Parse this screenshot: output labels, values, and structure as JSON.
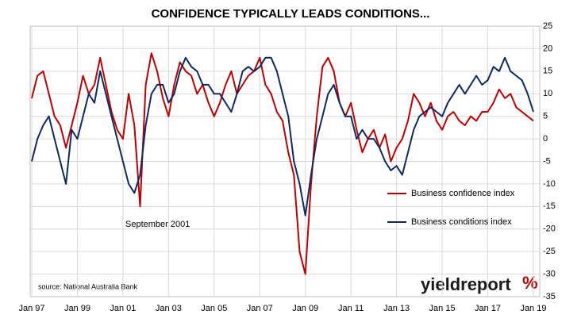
{
  "chart_data": {
    "type": "line",
    "title": "CONFIDENCE TYPICALLY LEADS CONDITIONS...",
    "annotation": "September 2001",
    "source": "source: National Australia Bank",
    "logo": "yieldreport",
    "logo_mark": "%",
    "legend": "right",
    "grid": true,
    "xlim": [
      1996.93,
      2019.28
    ],
    "xticks": [
      {
        "value": 1997,
        "label": "Jan 97"
      },
      {
        "value": 1999,
        "label": "Jan 99"
      },
      {
        "value": 2001,
        "label": "Jan 01"
      },
      {
        "value": 2003,
        "label": "Jan 03"
      },
      {
        "value": 2005,
        "label": "Jan 05"
      },
      {
        "value": 2007,
        "label": "Jan 07"
      },
      {
        "value": 2009,
        "label": "Jan 09"
      },
      {
        "value": 2011,
        "label": "Jan 11"
      },
      {
        "value": 2013,
        "label": "Jan 13"
      },
      {
        "value": 2015,
        "label": "Jan 15"
      },
      {
        "value": 2017,
        "label": "Jan 17"
      },
      {
        "value": 2019,
        "label": "Jan 19"
      }
    ],
    "ylim": [
      -35,
      25
    ],
    "yticks": [
      -35,
      -30,
      -25,
      -20,
      -15,
      -10,
      -5,
      0,
      5,
      10,
      15,
      20,
      25
    ],
    "x": [
      1997,
      1997.25,
      1997.5,
      1997.75,
      1998,
      1998.25,
      1998.5,
      1998.75,
      1999,
      1999.25,
      1999.5,
      1999.75,
      2000,
      2000.25,
      2000.5,
      2000.75,
      2001,
      2001.25,
      2001.5,
      2001.75,
      2002,
      2002.25,
      2002.5,
      2002.75,
      2003,
      2003.25,
      2003.5,
      2003.75,
      2004,
      2004.25,
      2004.5,
      2004.75,
      2005,
      2005.25,
      2005.5,
      2005.75,
      2006,
      2006.25,
      2006.5,
      2006.75,
      2007,
      2007.25,
      2007.5,
      2007.75,
      2008,
      2008.25,
      2008.5,
      2008.75,
      2009,
      2009.25,
      2009.5,
      2009.75,
      2010,
      2010.25,
      2010.5,
      2010.75,
      2011,
      2011.25,
      2011.5,
      2011.75,
      2012,
      2012.25,
      2012.5,
      2012.75,
      2013,
      2013.25,
      2013.5,
      2013.75,
      2014,
      2014.25,
      2014.5,
      2014.75,
      2015,
      2015.25,
      2015.5,
      2015.75,
      2016,
      2016.25,
      2016.5,
      2016.75,
      2017,
      2017.25,
      2017.5,
      2017.75,
      2018,
      2018.25,
      2018.5,
      2018.75,
      2019
    ],
    "series": [
      {
        "name": "Business confidence index",
        "color": "#c00000",
        "values": [
          9,
          14,
          15,
          10,
          5,
          3,
          -2,
          3,
          8,
          14,
          10,
          12,
          18,
          12,
          6,
          2,
          0,
          10,
          3,
          -15,
          12,
          19,
          15,
          9,
          5,
          12,
          17,
          15,
          14,
          10,
          12,
          8,
          5,
          8,
          12,
          15,
          10,
          12,
          14,
          15,
          18,
          12,
          10,
          6,
          4,
          -3,
          -8,
          -25,
          -30,
          -10,
          5,
          16,
          18,
          15,
          8,
          5,
          8,
          2,
          -3,
          0,
          2,
          -2,
          1,
          -5,
          -2,
          0,
          4,
          10,
          8,
          5,
          8,
          4,
          2,
          5,
          6,
          4,
          3,
          5,
          4,
          6,
          6,
          8,
          11,
          9,
          10,
          7,
          6,
          5,
          4
        ]
      },
      {
        "name": "Business conditions index",
        "color": "#0f2a63",
        "values": [
          -5,
          0,
          3,
          5,
          0,
          -5,
          -10,
          2,
          0,
          5,
          10,
          8,
          15,
          10,
          5,
          0,
          -5,
          -10,
          -12,
          -8,
          3,
          10,
          12,
          12,
          8,
          10,
          15,
          18,
          16,
          15,
          12,
          12,
          10,
          10,
          8,
          6,
          10,
          15,
          16,
          15,
          16,
          18,
          18,
          15,
          10,
          5,
          -5,
          -10,
          -17,
          -8,
          0,
          5,
          10,
          12,
          8,
          5,
          5,
          0,
          2,
          0,
          0,
          -2,
          -5,
          -7,
          -6,
          -8,
          -3,
          2,
          5,
          6,
          7,
          6,
          5,
          8,
          10,
          12,
          10,
          12,
          14,
          12,
          13,
          16,
          15,
          18,
          15,
          14,
          13,
          10,
          6
        ]
      }
    ]
  }
}
